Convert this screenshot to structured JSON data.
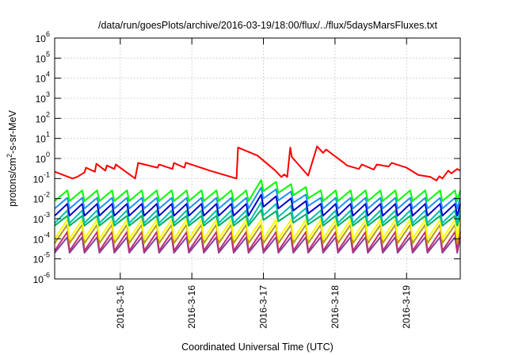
{
  "chart_data": {
    "type": "line",
    "title": "/data/run/goesPlots/archive/2016-03-19/18:00/flux/../flux/5daysMarsFluxes.txt",
    "xlabel": "Coordinated Universal Time (UTC)",
    "ylabel": {
      "base": "protons/cm",
      "sup": "2",
      "rest": "-s-sr-MeV"
    },
    "x_range": [
      "2016-03-14T02:00",
      "2016-03-19T18:00"
    ],
    "x_ticks": [
      "2016-3-15",
      "2016-3-16",
      "2016-3-17",
      "2016-3-18",
      "2016-3-19"
    ],
    "x_tick_dates": [
      "2016-03-15",
      "2016-03-16",
      "2016-03-17",
      "2016-03-18",
      "2016-03-19"
    ],
    "y_scale": "log",
    "y_ticks": [
      {
        "base": "10",
        "exp": "-6"
      },
      {
        "base": "10",
        "exp": "-5"
      },
      {
        "base": "10",
        "exp": "-4"
      },
      {
        "base": "10",
        "exp": "-3"
      },
      {
        "base": "10",
        "exp": "-2"
      },
      {
        "base": "10",
        "exp": "-1"
      },
      {
        "base": "10",
        "exp": "0"
      },
      {
        "base": "10",
        "exp": "1"
      },
      {
        "base": "10",
        "exp": "2"
      },
      {
        "base": "10",
        "exp": "3"
      },
      {
        "base": "10",
        "exp": "4"
      },
      {
        "base": "10",
        "exp": "5"
      },
      {
        "base": "10",
        "exp": "6"
      }
    ],
    "ylim": [
      1e-06,
      1000000.0
    ],
    "grid": true,
    "series": [
      {
        "color": "#ff0000",
        "x": [
          "2016-03-14T02:00",
          "2016-03-14T08:00",
          "2016-03-14T09:30",
          "2016-03-14T12:00",
          "2016-03-14T12:30",
          "2016-03-14T15:30",
          "2016-03-14T16:00",
          "2016-03-14T19:00",
          "2016-03-14T19:30",
          "2016-03-14T22:00",
          "2016-03-14T22:30",
          "2016-03-15T05:00",
          "2016-03-15T06:00",
          "2016-03-15T12:30",
          "2016-03-15T13:00",
          "2016-03-15T17:30",
          "2016-03-15T18:00",
          "2016-03-15T21:30",
          "2016-03-15T22:00",
          "2016-03-16T06:00",
          "2016-03-16T15:00",
          "2016-03-16T15:30",
          "2016-03-16T22:00",
          "2016-03-17T04:00",
          "2016-03-17T06:00",
          "2016-03-17T07:00",
          "2016-03-17T08:00",
          "2016-03-17T09:00",
          "2016-03-17T09:30",
          "2016-03-17T15:00",
          "2016-03-17T18:00",
          "2016-03-17T20:00",
          "2016-03-17T21:00",
          "2016-03-18T03:00",
          "2016-03-18T04:00",
          "2016-03-18T08:00",
          "2016-03-18T09:00",
          "2016-03-18T13:00",
          "2016-03-18T14:00",
          "2016-03-18T18:00",
          "2016-03-18T19:00",
          "2016-03-19T00:00",
          "2016-03-19T04:00",
          "2016-03-19T08:00",
          "2016-03-19T10:00",
          "2016-03-19T11:00",
          "2016-03-19T12:00",
          "2016-03-19T14:00",
          "2016-03-19T15:00",
          "2016-03-19T17:00",
          "2016-03-19T18:00"
        ],
        "y": [
          0.22,
          0.1,
          0.12,
          0.2,
          0.35,
          0.22,
          0.55,
          0.25,
          0.45,
          0.3,
          0.5,
          0.1,
          0.6,
          0.35,
          0.5,
          0.3,
          0.6,
          0.35,
          0.62,
          0.25,
          0.1,
          3.5,
          1.4,
          0.25,
          0.12,
          0.16,
          0.12,
          3.5,
          1.2,
          0.14,
          4.0,
          1.9,
          2.8,
          0.6,
          0.45,
          0.3,
          0.5,
          0.28,
          0.5,
          0.4,
          0.6,
          0.35,
          0.15,
          0.12,
          0.08,
          0.13,
          0.1,
          0.25,
          0.18,
          0.3,
          0.25
        ]
      },
      {
        "color": "#00ff00",
        "pattern": {
          "lo": 0.0075,
          "hi": 0.026,
          "cycle_hours": 5,
          "boost_from": "2016-03-16T22:00",
          "boost_to": "2016-03-17T18:00",
          "boost_factor": 3.4
        }
      },
      {
        "color": "#1e90ff",
        "pattern": {
          "lo": 0.0032,
          "hi": 0.011,
          "cycle_hours": 5,
          "boost_from": "2016-03-16T22:00",
          "boost_to": "2016-03-17T18:00",
          "boost_factor": 3.4
        }
      },
      {
        "color": "#0000cd",
        "pattern": {
          "lo": 0.0014,
          "hi": 0.0055,
          "cycle_hours": 5,
          "boost_from": "2016-03-16T22:00",
          "boost_to": "2016-03-17T18:00",
          "boost_factor": 3.0
        }
      },
      {
        "color": "#00c0b0",
        "pattern": {
          "lo": 0.0006,
          "hi": 0.0026,
          "cycle_hours": 5,
          "boost_from": "2016-03-16T22:00",
          "boost_to": "2016-03-17T18:00",
          "boost_factor": 2.6
        }
      },
      {
        "color": "#00b060",
        "pattern": {
          "lo": 0.00045,
          "hi": 0.0014,
          "cycle_hours": 5,
          "boost_from": "2016-03-16T22:00",
          "boost_to": "2016-03-17T18:00",
          "boost_factor": 2.0
        }
      },
      {
        "color": "#ffff00",
        "pattern": {
          "lo": 0.0001,
          "hi": 0.0009,
          "cycle_hours": 5
        }
      },
      {
        "color": "#b8a000",
        "pattern": {
          "lo": 6e-05,
          "hi": 0.0005,
          "cycle_hours": 5
        }
      },
      {
        "color": "#c03070",
        "pattern": {
          "lo": 2.5e-05,
          "hi": 0.00022,
          "cycle_hours": 5
        }
      },
      {
        "color": "#8040a0",
        "pattern": {
          "lo": 2e-05,
          "hi": 0.00012,
          "cycle_hours": 5
        }
      }
    ]
  }
}
